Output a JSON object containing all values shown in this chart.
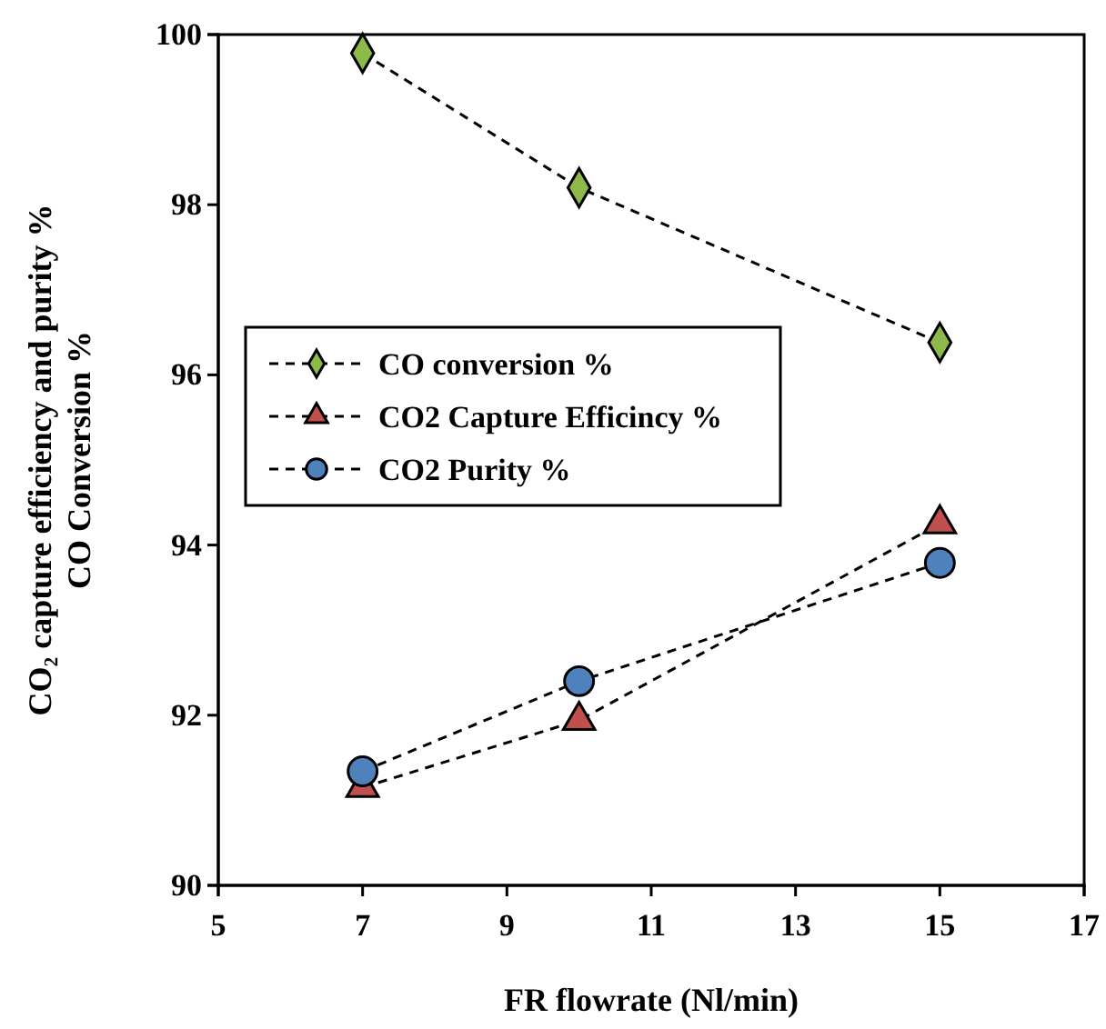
{
  "chart_data": {
    "type": "line",
    "xlabel": "FR flowrate (Nl/min)",
    "ylabel": "CO₂ capture efficiency and purity %\nCO Conversion %",
    "x": [
      7,
      10,
      15
    ],
    "xlim": [
      5,
      17
    ],
    "xticks": [
      5,
      7,
      9,
      11,
      13,
      15,
      17
    ],
    "ylim": [
      90,
      100
    ],
    "yticks": [
      90,
      92,
      94,
      96,
      98,
      100
    ],
    "line_style": "dashed",
    "legend": "left",
    "grid": false,
    "series": [
      {
        "name": "CO conversion %",
        "color": "#8db84a",
        "marker": "diamond",
        "values": [
          99.78,
          98.2,
          96.38
        ]
      },
      {
        "name": "CO2 Capture Efficincy %",
        "color": "#c0504d",
        "marker": "triangle",
        "values": [
          91.15,
          91.94,
          94.25
        ]
      },
      {
        "name": "CO2 Purity %",
        "color": "#4f81bd",
        "marker": "circle",
        "values": [
          91.34,
          92.4,
          93.79
        ]
      }
    ]
  }
}
